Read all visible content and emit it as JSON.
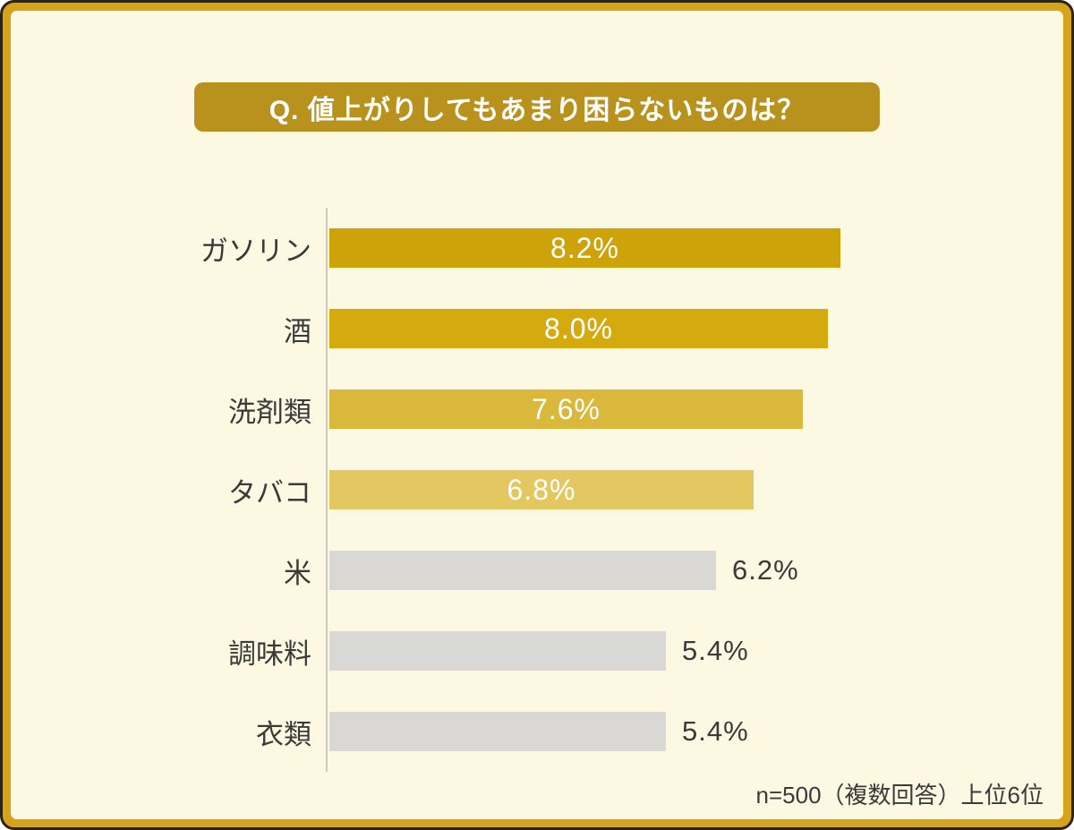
{
  "page": {
    "title_banner": "Q. 値上がりしてもあまり困らないものは？",
    "footnote": "n=500（複数回答）上位6位"
  },
  "colors": {
    "background": "#FDF8E2",
    "frame_gold": "#D7A31B",
    "frame_outline": "#2B2516",
    "banner_gold": "#B9921E",
    "axis_line": "#CCC9C0",
    "text_dark": "#3A3A3A",
    "value_text_inside": "#FFFFFF"
  },
  "chart_data": {
    "type": "bar",
    "orientation": "horizontal",
    "title": "Q. 値上がりしてもあまり困らないものは？",
    "categories": [
      "ガソリン",
      "酒",
      "洗剤類",
      "タバコ",
      "米",
      "調味料",
      "衣類"
    ],
    "values": [
      8.2,
      8.0,
      7.6,
      6.8,
      6.2,
      5.4,
      5.4
    ],
    "value_labels": [
      "8.2%",
      "8.0%",
      "7.6%",
      "6.8%",
      "6.2%",
      "5.4%",
      "5.4%"
    ],
    "bar_colors": [
      "#CEA30A",
      "#D5AA0F",
      "#DAB83B",
      "#E3C760",
      "#D9D8D4",
      "#D9D8D4",
      "#D9D8D4"
    ],
    "value_label_inside": [
      true,
      true,
      true,
      true,
      false,
      false,
      false
    ],
    "xlabel": "",
    "ylabel": "",
    "xlim": [
      0,
      8.2
    ],
    "grid": false,
    "legend": false,
    "note": "n=500（複数回答）上位6位"
  }
}
